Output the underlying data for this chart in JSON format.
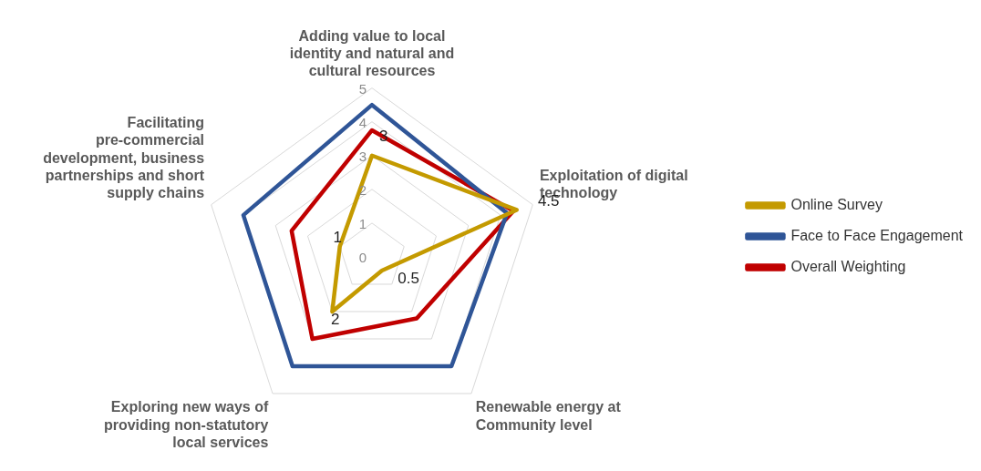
{
  "chart_data": {
    "type": "radar",
    "categories": [
      "Adding value to local identity and natural and cultural resources",
      "Exploitation of digital technology",
      "Renewable energy at Community level",
      "Exploring new ways of providing non-statutory local services",
      "Facilitating pre-commercial development, business partnerships and short supply chains"
    ],
    "series": [
      {
        "name": "Online Survey",
        "color": "#c49a00",
        "values": [
          3,
          4.5,
          0.5,
          2,
          1
        ],
        "value_labels": [
          "3",
          "4.5",
          "0.5",
          "2",
          "1"
        ]
      },
      {
        "name": "Face to Face Engagement",
        "color": "#2f5597",
        "values": [
          4.5,
          4.2,
          4,
          4,
          4
        ]
      },
      {
        "name": "Overall Weighting",
        "color": "#c00000",
        "values": [
          3.75,
          4.4,
          2.25,
          3,
          2.5
        ]
      }
    ],
    "ylim": [
      0,
      5
    ],
    "yticks": [
      0,
      1,
      2,
      3,
      4,
      5
    ],
    "grid": true,
    "legend": "right",
    "marker": "none"
  }
}
